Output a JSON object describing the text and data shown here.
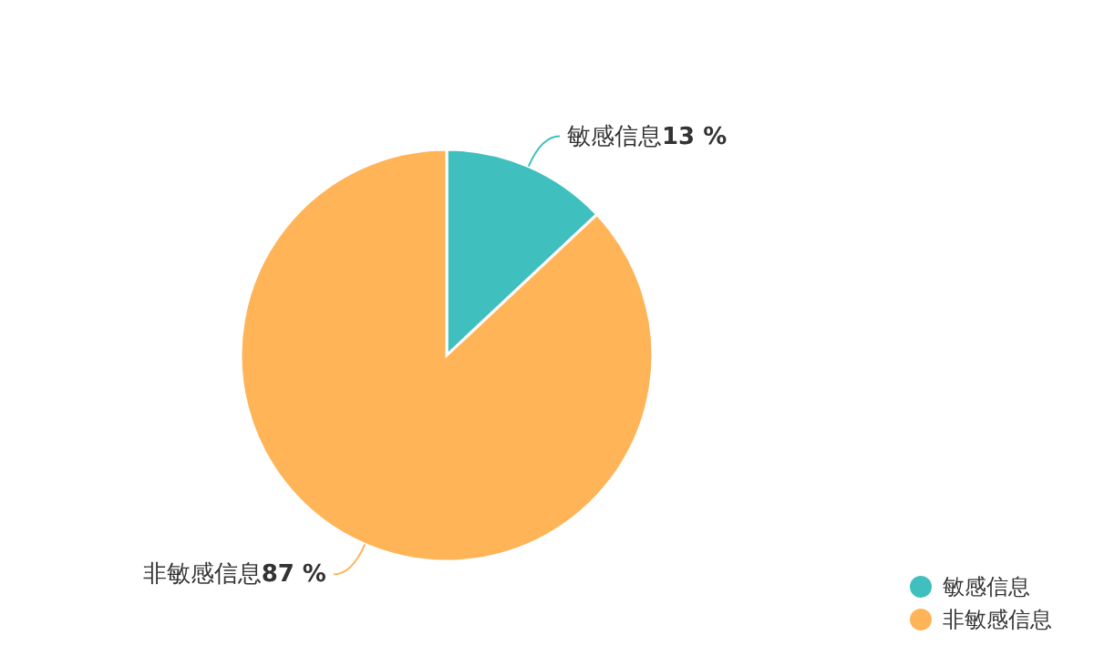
{
  "chart_data": {
    "type": "pie",
    "categories": [
      "敏感信息",
      "非敏感信息"
    ],
    "values": [
      13,
      87
    ],
    "colors": [
      "#40bfbf",
      "#ffb458"
    ],
    "value_labels": [
      "13 %",
      "87 %"
    ],
    "legend": "bottom right"
  }
}
